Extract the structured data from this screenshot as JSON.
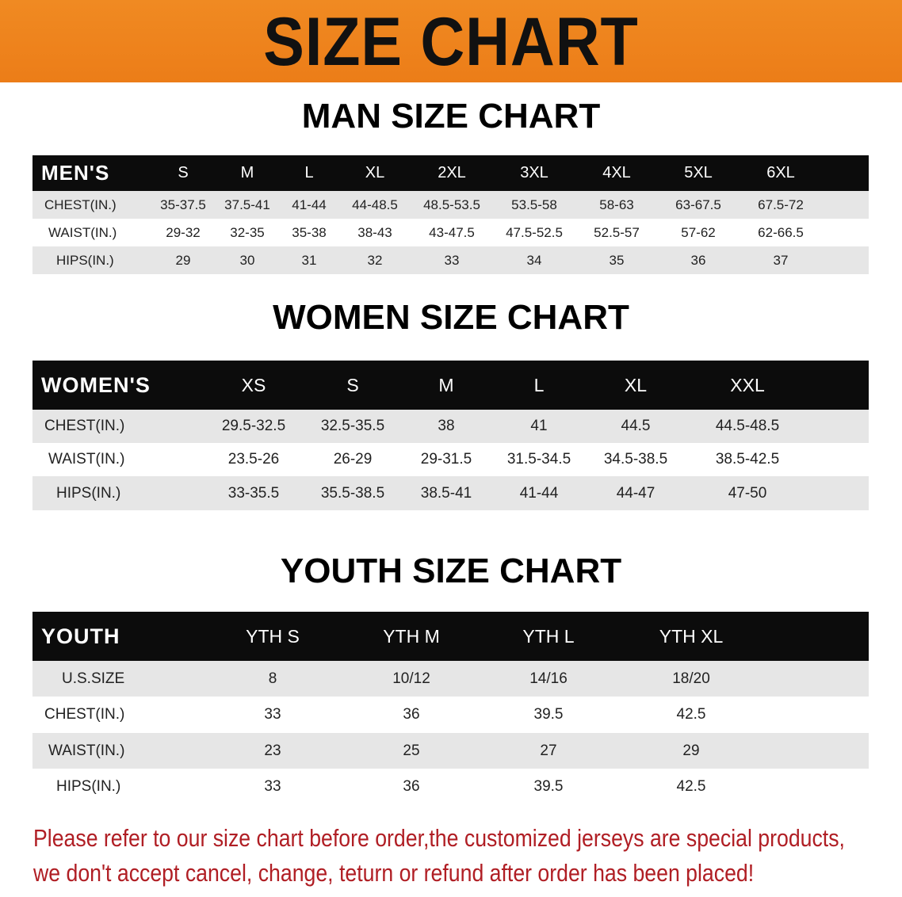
{
  "banner_title": "SIZE CHART",
  "men": {
    "title": "MAN SIZE CHART",
    "header": [
      "MEN'S",
      "S",
      "M",
      "L",
      "XL",
      "2XL",
      "3XL",
      "4XL",
      "5XL",
      "6XL"
    ],
    "rows": [
      [
        "CHEST(IN.)",
        "35-37.5",
        "37.5-41",
        "41-44",
        "44-48.5",
        "48.5-53.5",
        "53.5-58",
        "58-63",
        "63-67.5",
        "67.5-72"
      ],
      [
        "WAIST(IN.)",
        "29-32",
        "32-35",
        "35-38",
        "38-43",
        "43-47.5",
        "47.5-52.5",
        "52.5-57",
        "57-62",
        "62-66.5"
      ],
      [
        "HIPS(IN.)",
        "29",
        "30",
        "31",
        "32",
        "33",
        "34",
        "35",
        "36",
        "37"
      ]
    ]
  },
  "women": {
    "title": "WOMEN SIZE CHART",
    "header": [
      "WOMEN'S",
      "XS",
      "S",
      "M",
      "L",
      "XL",
      "XXL"
    ],
    "rows": [
      [
        "CHEST(IN.)",
        "29.5-32.5",
        "32.5-35.5",
        "38",
        "41",
        "44.5",
        "44.5-48.5"
      ],
      [
        "WAIST(IN.)",
        "23.5-26",
        "26-29",
        "29-31.5",
        "31.5-34.5",
        "34.5-38.5",
        "38.5-42.5"
      ],
      [
        "HIPS(IN.)",
        "33-35.5",
        "35.5-38.5",
        "38.5-41",
        "41-44",
        "44-47",
        "47-50"
      ]
    ]
  },
  "youth": {
    "title": "YOUTH SIZE CHART",
    "header": [
      "YOUTH",
      "YTH S",
      "YTH M",
      "YTH L",
      "YTH XL"
    ],
    "rows": [
      [
        "U.S.SIZE",
        "8",
        "10/12",
        "14/16",
        "18/20"
      ],
      [
        "CHEST(IN.)",
        "33",
        "36",
        "39.5",
        "42.5"
      ],
      [
        "WAIST(IN.)",
        "23",
        "25",
        "27",
        "29"
      ],
      [
        "HIPS(IN.)",
        "33",
        "36",
        "39.5",
        "42.5"
      ]
    ]
  },
  "note": [
    "Please refer to our size chart before order,the customized jerseys are special products,",
    "we don't accept cancel, change, teturn or refund after order has been placed!"
  ]
}
